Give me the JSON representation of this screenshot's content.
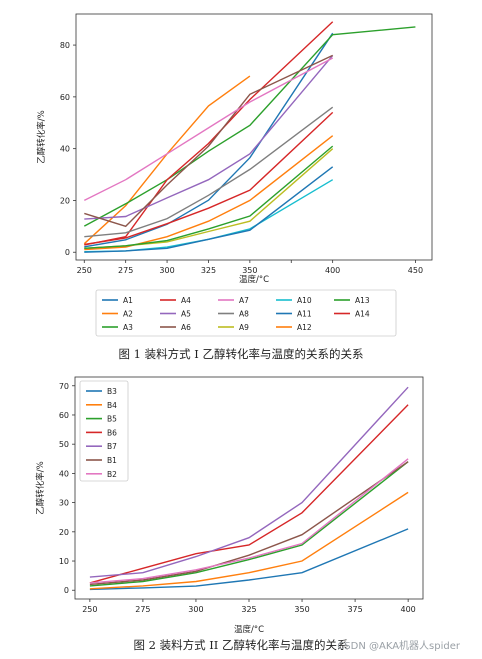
{
  "colors": {
    "blue": "#1f77b4",
    "orange": "#ff7f0e",
    "green": "#2ca02c",
    "red": "#d62728",
    "purple": "#9467bd",
    "brown": "#8c564b",
    "pink": "#e377c2",
    "gray": "#7f7f7f",
    "olive": "#bcbd22",
    "cyan": "#17becf"
  },
  "captions": {
    "fig1": "图 1  装料方式 I 乙醇转化率与温度的关系的关系",
    "fig2": "图 2  装料方式 II 乙醇转化率与温度的关系"
  },
  "watermark": "CSDN @AKA机器人spider",
  "chart_data": [
    {
      "type": "line",
      "xlabel": "温度/°C",
      "ylabel": "乙醇转化率/%",
      "x_ticks": [
        250,
        275,
        300,
        325,
        350,
        375,
        400,
        450
      ],
      "x_tick_labels": [
        "250",
        "275",
        "300",
        "325",
        "350",
        "",
        "400",
        "450"
      ],
      "xlim": [
        245,
        460
      ],
      "ylim": [
        -3,
        92
      ],
      "y_ticks": [
        0,
        20,
        40,
        60,
        80
      ],
      "grid": false,
      "legend": "below, 5 columns",
      "series": [
        {
          "name": "A1",
          "color": "blue",
          "x": [
            250,
            275,
            300,
            325,
            350,
            400
          ],
          "values": [
            2.1,
            4.8,
            10.8,
            20.1,
            36.5,
            84.6
          ]
        },
        {
          "name": "A2",
          "color": "orange",
          "x": [
            250,
            275,
            300,
            325,
            350
          ],
          "values": [
            3.3,
            18,
            38,
            56.5,
            68
          ]
        },
        {
          "name": "A3",
          "color": "green",
          "x": [
            250,
            275,
            300,
            325,
            350,
            400,
            450
          ],
          "values": [
            10.1,
            18.7,
            28,
            39,
            49,
            84,
            87
          ]
        },
        {
          "name": "A4",
          "color": "red",
          "x": [
            250,
            275,
            300,
            325,
            350,
            400
          ],
          "values": [
            2.8,
            6,
            28,
            42,
            59,
            89
          ]
        },
        {
          "name": "A5",
          "color": "purple",
          "x": [
            250,
            275,
            300,
            325,
            350,
            400
          ],
          "values": [
            12.8,
            13.8,
            21,
            28,
            38,
            76
          ]
        },
        {
          "name": "A6",
          "color": "brown",
          "x": [
            250,
            275,
            300,
            325,
            350,
            400
          ],
          "values": [
            15,
            10,
            26,
            41,
            61,
            76
          ]
        },
        {
          "name": "A7",
          "color": "pink",
          "x": [
            250,
            275,
            300,
            325,
            350,
            400
          ],
          "values": [
            20,
            28,
            38,
            48,
            58,
            75
          ]
        },
        {
          "name": "A8",
          "color": "gray",
          "x": [
            250,
            275,
            300,
            325,
            350,
            400
          ],
          "values": [
            6,
            7.5,
            13,
            22,
            32,
            56
          ]
        },
        {
          "name": "A9",
          "color": "olive",
          "x": [
            250,
            275,
            300,
            325,
            350,
            400
          ],
          "values": [
            1.5,
            2.5,
            4,
            8,
            12,
            40
          ]
        },
        {
          "name": "A10",
          "color": "cyan",
          "x": [
            250,
            275,
            300,
            325,
            350,
            400
          ],
          "values": [
            0.2,
            0.5,
            2,
            5,
            9,
            28
          ]
        },
        {
          "name": "A11",
          "color": "blue",
          "x": [
            250,
            275,
            300,
            325,
            350,
            400
          ],
          "values": [
            0,
            0.5,
            1.5,
            5,
            8.5,
            33
          ]
        },
        {
          "name": "A12",
          "color": "orange",
          "x": [
            250,
            275,
            300,
            325,
            350,
            400
          ],
          "values": [
            1,
            2,
            6,
            12,
            20,
            45
          ]
        },
        {
          "name": "A13",
          "color": "green",
          "x": [
            250,
            275,
            300,
            325,
            350,
            400
          ],
          "values": [
            1.5,
            2.5,
            4.5,
            9,
            14,
            41
          ]
        },
        {
          "name": "A14",
          "color": "red",
          "x": [
            250,
            275,
            300,
            325,
            350,
            400
          ],
          "values": [
            3,
            5.5,
            11,
            17,
            24,
            54
          ]
        }
      ]
    },
    {
      "type": "line",
      "xlabel": "温度/°C",
      "ylabel": "乙醇转化率/%",
      "x_ticks": [
        250,
        275,
        300,
        325,
        350,
        375,
        400
      ],
      "x_tick_labels": [
        "250",
        "275",
        "300",
        "325",
        "350",
        "375",
        "400"
      ],
      "xlim": [
        243,
        407
      ],
      "ylim": [
        -3,
        73
      ],
      "y_ticks": [
        0,
        10,
        20,
        30,
        40,
        50,
        60,
        70
      ],
      "grid": false,
      "legend": "top-left",
      "series": [
        {
          "name": "B3",
          "color": "blue",
          "x": [
            250,
            275,
            300,
            325,
            350,
            400
          ],
          "values": [
            0.3,
            0.8,
            1.4,
            3.5,
            6,
            21
          ]
        },
        {
          "name": "B4",
          "color": "orange",
          "x": [
            250,
            275,
            300,
            325,
            350,
            400
          ],
          "values": [
            0.5,
            1.5,
            3,
            6,
            10,
            33.5
          ]
        },
        {
          "name": "B5",
          "color": "green",
          "x": [
            250,
            275,
            300,
            325,
            350,
            400
          ],
          "values": [
            1.5,
            3,
            6,
            10.5,
            15.5,
            44
          ]
        },
        {
          "name": "B6",
          "color": "red",
          "x": [
            250,
            275,
            300,
            325,
            350,
            400
          ],
          "values": [
            2.5,
            7.5,
            12.5,
            15.5,
            26.5,
            63.5
          ]
        },
        {
          "name": "B7",
          "color": "purple",
          "x": [
            250,
            275,
            300,
            325,
            350,
            400
          ],
          "values": [
            4.5,
            6,
            11.5,
            18,
            30,
            69.5
          ]
        },
        {
          "name": "B1",
          "color": "brown",
          "x": [
            250,
            275,
            300,
            325,
            350,
            400
          ],
          "values": [
            2,
            3.5,
            6.5,
            12,
            19,
            44
          ]
        },
        {
          "name": "B2",
          "color": "pink",
          "x": [
            250,
            275,
            300,
            325,
            350,
            400
          ],
          "values": [
            2.5,
            4,
            7,
            11,
            16,
            45
          ]
        }
      ]
    }
  ]
}
